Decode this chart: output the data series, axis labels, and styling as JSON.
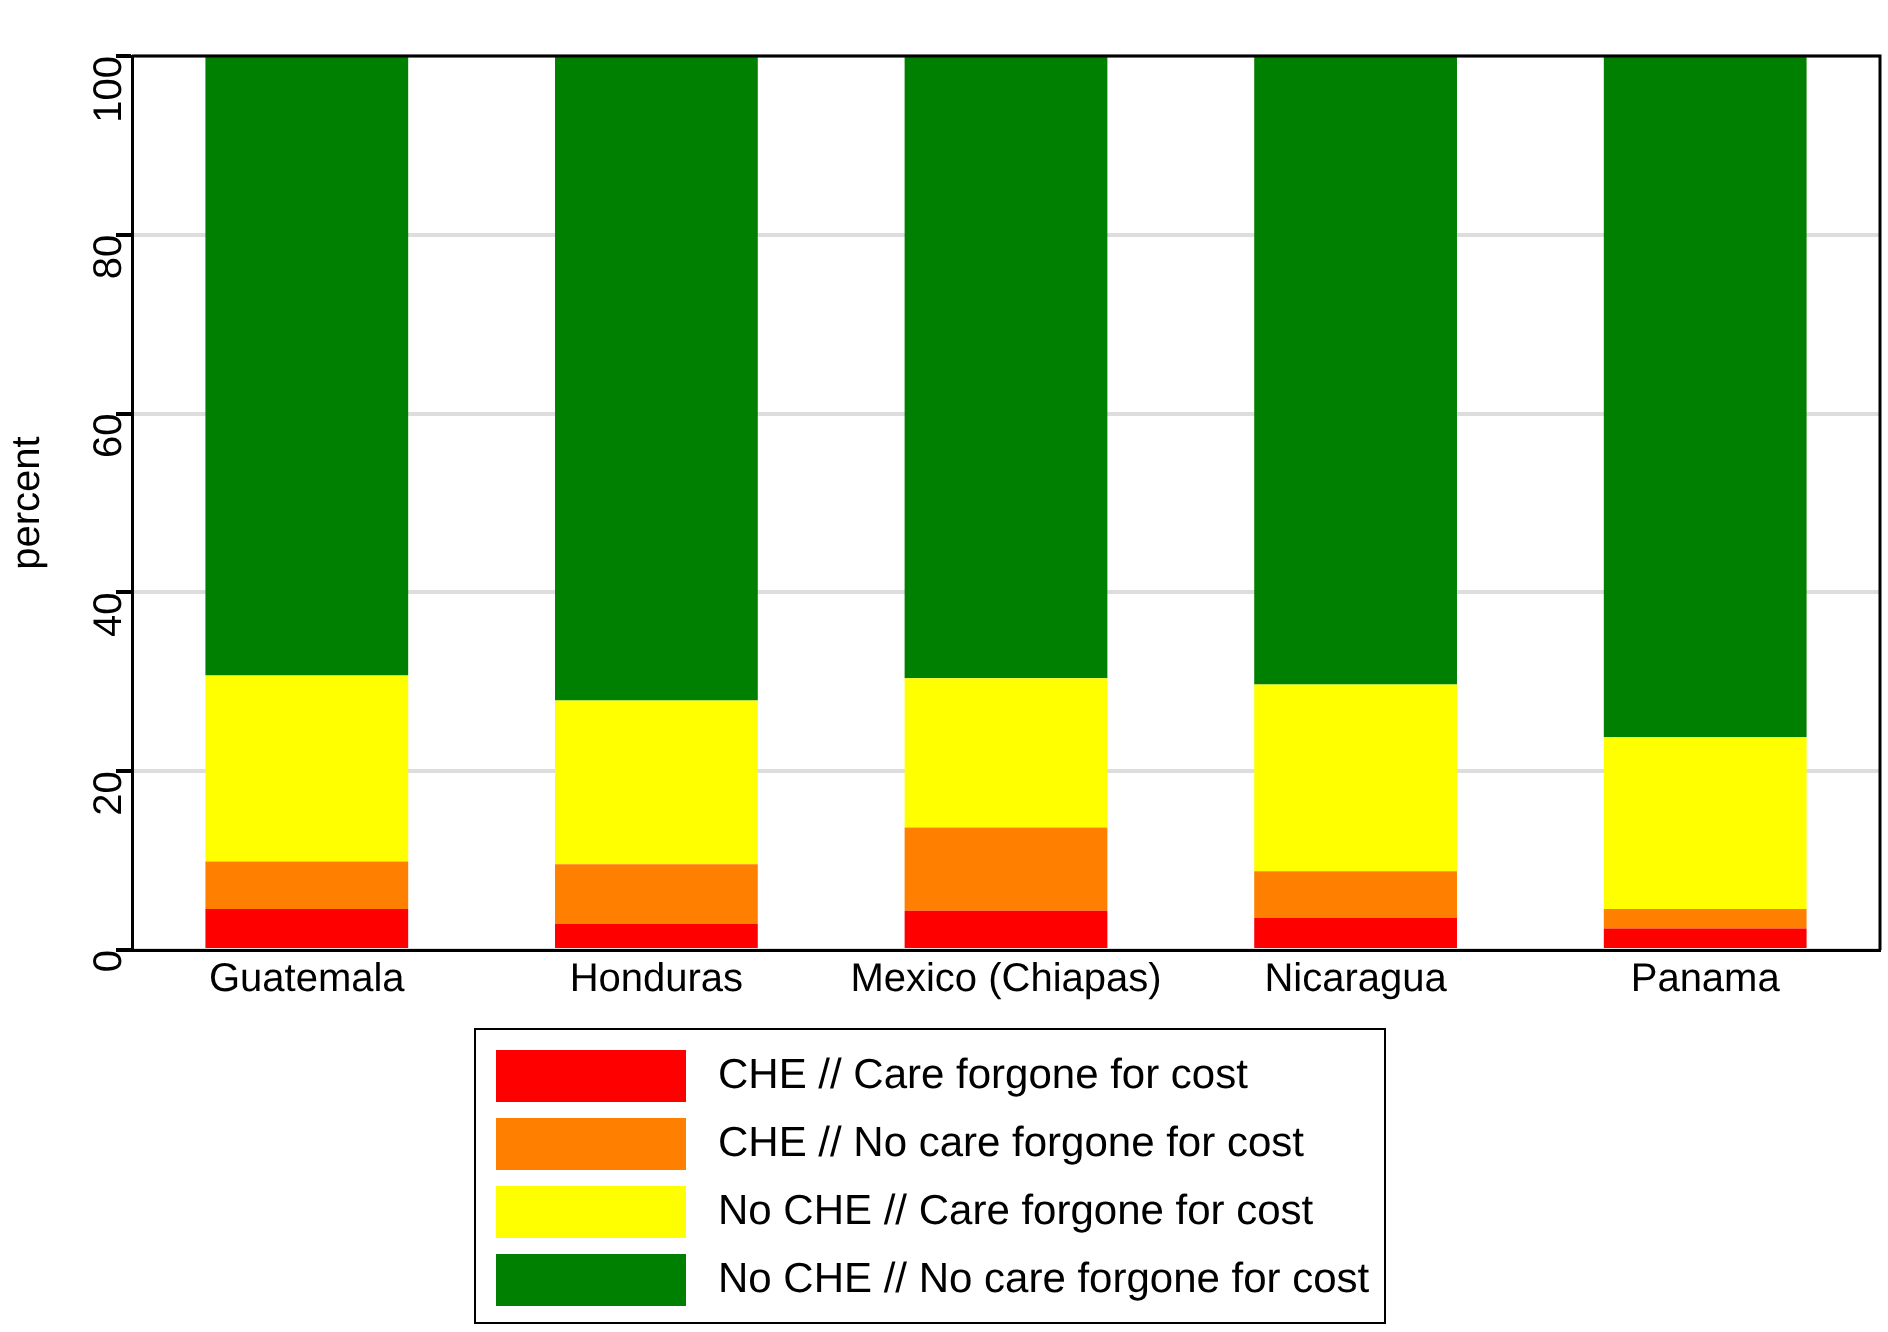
{
  "chart_data": {
    "type": "bar",
    "stacked": true,
    "ylabel": "percent",
    "categories": [
      "Guatemala",
      "Honduras",
      "Mexico (Chiapas)",
      "Nicaragua",
      "Panama"
    ],
    "series": [
      {
        "name": "CHE // Care forgone for cost",
        "color": "#ff0000",
        "values": [
          4.6,
          2.9,
          4.4,
          3.6,
          2.4
        ]
      },
      {
        "name": "CHE // No care forgone for cost",
        "color": "#ff8000",
        "values": [
          5.3,
          6.7,
          9.3,
          5.2,
          2.2
        ]
      },
      {
        "name": "No CHE // Care forgone for cost",
        "color": "#ffff00",
        "values": [
          20.8,
          18.3,
          16.7,
          20.9,
          19.2
        ]
      },
      {
        "name": "No CHE // No care forgone for cost",
        "color": "#008000",
        "values": [
          69.3,
          72.1,
          69.6,
          70.3,
          76.2
        ]
      }
    ],
    "ylim": [
      0,
      100
    ],
    "yticks": [
      0,
      20,
      40,
      60,
      80,
      100
    ],
    "grid": "y",
    "legend": "bottom"
  }
}
